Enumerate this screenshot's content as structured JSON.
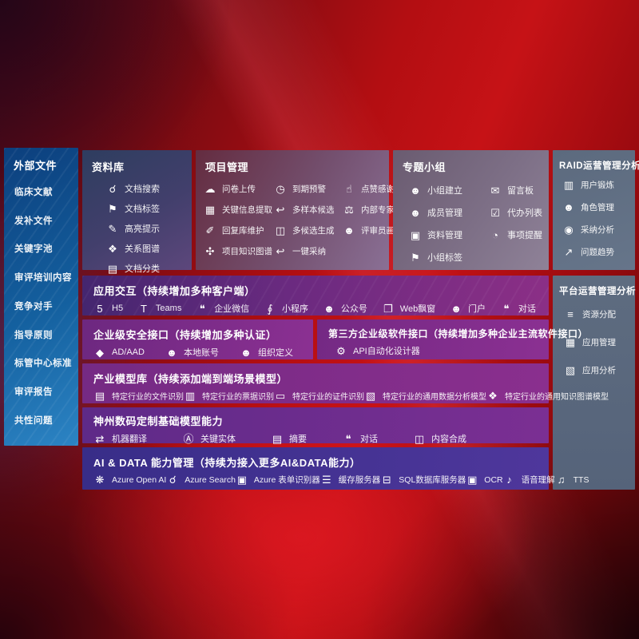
{
  "colors": {
    "background_red": "#b30e12",
    "sidebar_blue": "#14609f",
    "repository_navy": "#3c3f68",
    "project_maroon": "#6f4261",
    "topic_gray_purple": "#7d6f86",
    "ops_slate": "#5e6c80",
    "row_purple": "#7d2b88",
    "row_violet": "#6a2c8e",
    "row_indigo": "#42308f"
  },
  "sidebar": {
    "title": "外部文件",
    "items": [
      {
        "label": "临床文献"
      },
      {
        "label": "发补文件"
      },
      {
        "label": "关键字池"
      },
      {
        "label": "审评培训内容"
      },
      {
        "label": "竞争对手"
      },
      {
        "label": "指导原则"
      },
      {
        "label": "标管中心标准"
      },
      {
        "label": "审评报告"
      },
      {
        "label": "共性问题"
      }
    ]
  },
  "repository": {
    "title": "资料库",
    "items": [
      {
        "label": "文档搜索",
        "icon": "doc-search-icon"
      },
      {
        "label": "文档标签",
        "icon": "doc-tag-icon"
      },
      {
        "label": "高亮提示",
        "icon": "highlight-icon"
      },
      {
        "label": "关系图谱",
        "icon": "relation-graph-icon"
      },
      {
        "label": "文档分类",
        "icon": "doc-classify-icon"
      }
    ]
  },
  "project": {
    "title": "项目管理",
    "items": [
      {
        "label": "问卷上传",
        "icon": "cloud-upload-icon"
      },
      {
        "label": "到期预警",
        "icon": "due-warning-icon"
      },
      {
        "label": "点赞感谢",
        "icon": "like-thanks-icon"
      },
      {
        "label": "关键信息提取",
        "icon": "key-info-extract-icon"
      },
      {
        "label": "多样本候选",
        "icon": "multi-sample-icon"
      },
      {
        "label": "内部专家排名",
        "icon": "expert-ranking-icon"
      },
      {
        "label": "回复库维护",
        "icon": "reply-repo-icon"
      },
      {
        "label": "多候选生成",
        "icon": "multi-candidate-icon"
      },
      {
        "label": "评审员画像",
        "icon": "reviewer-profile-icon"
      },
      {
        "label": "项目知识图谱",
        "icon": "project-graph-icon"
      },
      {
        "label": "一键采纳",
        "icon": "one-click-adopt-icon"
      }
    ]
  },
  "topic_group": {
    "title": "专题小组",
    "items": [
      {
        "label": "小组建立",
        "icon": "group-create-icon"
      },
      {
        "label": "留言板",
        "icon": "message-board-icon"
      },
      {
        "label": "成员管理",
        "icon": "member-manage-icon"
      },
      {
        "label": "代办列表",
        "icon": "todo-list-icon"
      },
      {
        "label": "资料管理",
        "icon": "data-manage-icon"
      },
      {
        "label": "事项提醒",
        "icon": "reminder-bell-icon"
      },
      {
        "label": "小组标签",
        "icon": "group-tag-icon"
      }
    ]
  },
  "raid": {
    "title": "RAID运营管理分析",
    "items": [
      {
        "label": "用户锻炼",
        "icon": "user-training-icon"
      },
      {
        "label": "角色管理",
        "icon": "role-manage-icon"
      },
      {
        "label": "采纳分析",
        "icon": "adoption-analysis-icon"
      },
      {
        "label": "问题趋势",
        "icon": "issue-trend-icon"
      }
    ]
  },
  "platform": {
    "title": "平台运营管理分析",
    "items": [
      {
        "label": "资源分配",
        "icon": "resource-alloc-icon"
      },
      {
        "label": "应用管理",
        "icon": "app-manage-icon"
      },
      {
        "label": "应用分析",
        "icon": "app-analysis-icon"
      }
    ]
  },
  "interaction": {
    "title": "应用交互（持续增加多种客户端）",
    "items": [
      {
        "label": "H5",
        "icon": "h5-icon"
      },
      {
        "label": "Teams",
        "icon": "teams-icon"
      },
      {
        "label": "企业微信",
        "icon": "wechat-work-icon"
      },
      {
        "label": "小程序",
        "icon": "miniprogram-icon"
      },
      {
        "label": "公众号",
        "icon": "official-account-icon"
      },
      {
        "label": "Web飘窗",
        "icon": "web-popup-icon"
      },
      {
        "label": "门户",
        "icon": "portal-icon"
      },
      {
        "label": "对话",
        "icon": "dialog-icon"
      }
    ]
  },
  "security": {
    "title": "企业级安全接口（持续增加多种认证）",
    "items": [
      {
        "label": "AD/AAD",
        "icon": "ad-aad-shield-icon"
      },
      {
        "label": "本地账号",
        "icon": "local-account-icon"
      },
      {
        "label": "组织定义",
        "icon": "org-define-icon"
      }
    ]
  },
  "third_party": {
    "title": "第三方企业级软件接口（持续增加多种企业主流软件接口）",
    "items": [
      {
        "label": "API自动化设计器",
        "icon": "api-designer-gear-icon"
      }
    ]
  },
  "industry_models": {
    "title": "产业模型库（持续添加端到端场景模型）",
    "items": [
      {
        "label": "特定行业的文件识别",
        "icon": "file-recognition-icon"
      },
      {
        "label": "特定行业的票据识别",
        "icon": "invoice-recognition-icon"
      },
      {
        "label": "特定行业的证件识别",
        "icon": "id-recognition-icon"
      },
      {
        "label": "特定行业的通用数据分析模型",
        "icon": "data-analysis-model-icon"
      },
      {
        "label": "特定行业的通用知识图谱模型",
        "icon": "knowledge-graph-model-icon"
      }
    ]
  },
  "base_models": {
    "title": "神州数码定制基础模型能力",
    "items": [
      {
        "label": "机器翻译",
        "icon": "machine-translate-icon"
      },
      {
        "label": "关键实体",
        "icon": "key-entity-icon"
      },
      {
        "label": "摘要",
        "icon": "summary-icon"
      },
      {
        "label": "对话",
        "icon": "chat-dialog-icon"
      },
      {
        "label": "内容合成",
        "icon": "content-synthesis-icon"
      }
    ]
  },
  "ai_data": {
    "title": "AI & DATA 能力管理（持续为接入更多AI&DATA能力）",
    "items": [
      {
        "label": "Azure Open AI",
        "icon": "azure-openai-icon"
      },
      {
        "label": "Azure Search",
        "icon": "azure-search-icon"
      },
      {
        "label": "Azure 表单识别器",
        "icon": "azure-form-recognizer-icon"
      },
      {
        "label": "缓存服务器",
        "icon": "cache-server-icon"
      },
      {
        "label": "SQL数据库服务器",
        "icon": "sql-database-icon"
      },
      {
        "label": "OCR",
        "icon": "ocr-icon"
      },
      {
        "label": "语音理解",
        "icon": "speech-understanding-icon"
      },
      {
        "label": "TTS",
        "icon": "tts-icon"
      }
    ]
  },
  "icon_glyphs": {
    "doc-search-icon": "☌",
    "doc-tag-icon": "⚑",
    "highlight-icon": "✎",
    "relation-graph-icon": "❖",
    "doc-classify-icon": "▤",
    "cloud-upload-icon": "☁",
    "due-warning-icon": "◷",
    "like-thanks-icon": "☝",
    "key-info-extract-icon": "▦",
    "multi-sample-icon": "↩",
    "expert-ranking-icon": "⚖",
    "reply-repo-icon": "✐",
    "multi-candidate-icon": "◫",
    "reviewer-profile-icon": "☻",
    "project-graph-icon": "✣",
    "one-click-adopt-icon": "↩",
    "group-create-icon": "☻",
    "message-board-icon": "✉",
    "member-manage-icon": "☻",
    "todo-list-icon": "☑",
    "data-manage-icon": "▣",
    "reminder-bell-icon": "◔",
    "group-tag-icon": "⚑",
    "user-training-icon": "▥",
    "role-manage-icon": "☻",
    "adoption-analysis-icon": "◉",
    "issue-trend-icon": "↗",
    "resource-alloc-icon": "≡",
    "app-manage-icon": "▦",
    "app-analysis-icon": "▧",
    "h5-icon": "5",
    "teams-icon": "T",
    "wechat-work-icon": "❝",
    "miniprogram-icon": "∮",
    "official-account-icon": "☻",
    "web-popup-icon": "❐",
    "portal-icon": "☻",
    "dialog-icon": "❝",
    "ad-aad-shield-icon": "◆",
    "local-account-icon": "☻",
    "org-define-icon": "☻",
    "api-designer-gear-icon": "⚙",
    "file-recognition-icon": "▤",
    "invoice-recognition-icon": "▥",
    "id-recognition-icon": "▭",
    "data-analysis-model-icon": "▧",
    "knowledge-graph-model-icon": "❖",
    "machine-translate-icon": "⇄",
    "key-entity-icon": "Ⓐ",
    "summary-icon": "▤",
    "chat-dialog-icon": "❝",
    "content-synthesis-icon": "◫",
    "azure-openai-icon": "❋",
    "azure-search-icon": "☌",
    "azure-form-recognizer-icon": "▣",
    "cache-server-icon": "☰",
    "sql-database-icon": "⊟",
    "ocr-icon": "▣",
    "speech-understanding-icon": "♪",
    "tts-icon": "♫"
  }
}
